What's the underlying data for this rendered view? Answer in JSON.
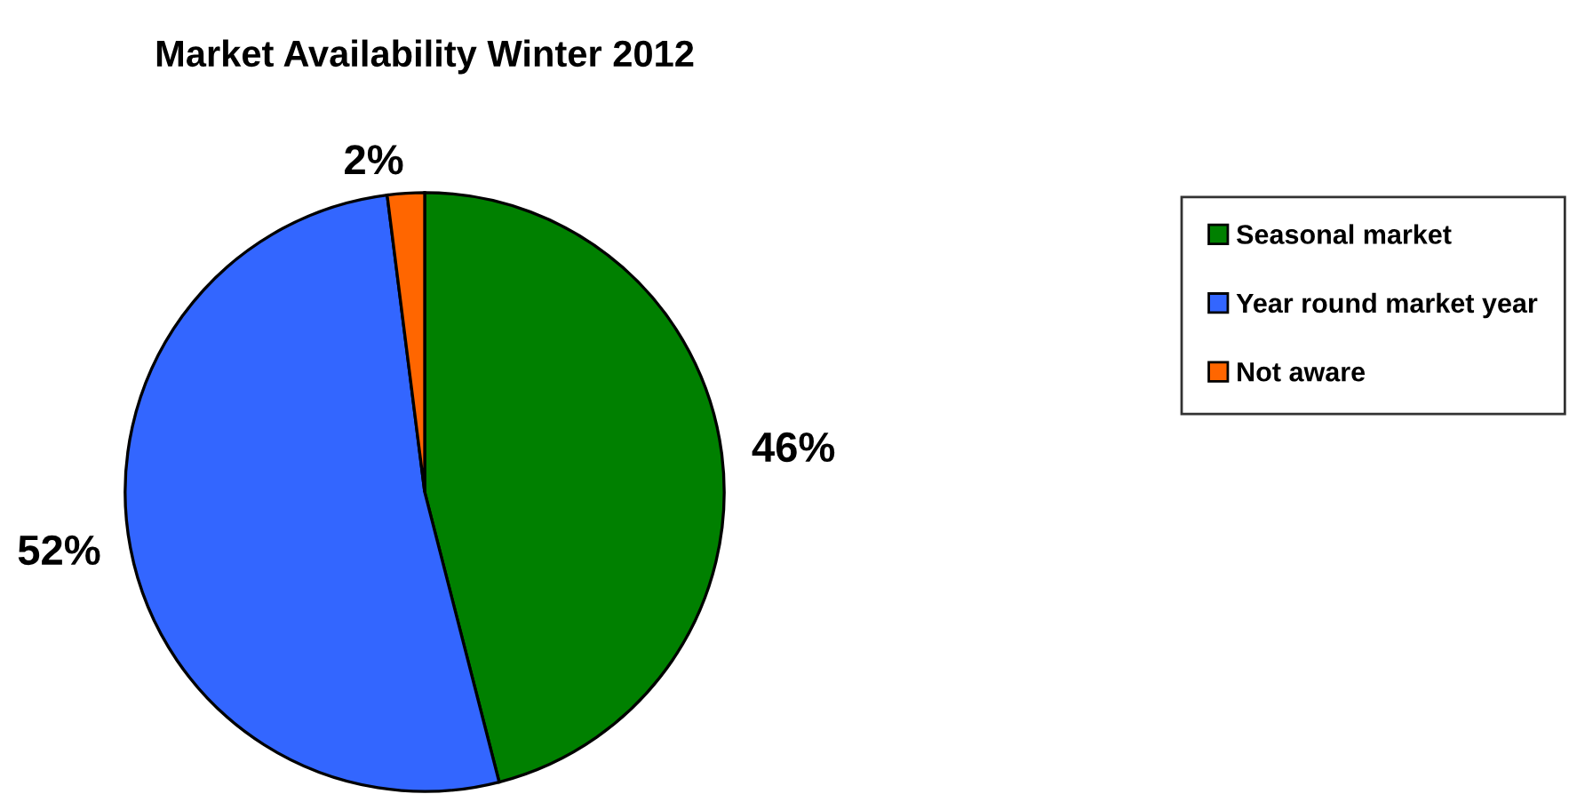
{
  "chart_data": {
    "type": "pie",
    "title": "Market Availability Winter 2012",
    "categories": [
      "Seasonal market",
      "Year round market year",
      "Not aware"
    ],
    "values": [
      46,
      52,
      2
    ],
    "value_labels": [
      "46%",
      "52%",
      "2%"
    ],
    "colors": [
      "#008000",
      "#3366ff",
      "#ff6600"
    ],
    "legend": "right"
  }
}
